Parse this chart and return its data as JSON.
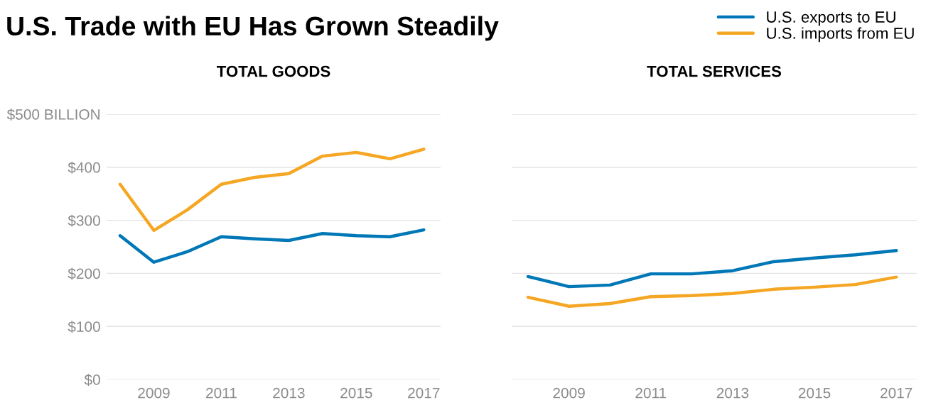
{
  "chart_data": [
    {
      "type": "line",
      "title": "U.S. Trade with EU Has Grown Steadily",
      "subtitle": "TOTAL GOODS",
      "x": [
        2008,
        2009,
        2010,
        2011,
        2012,
        2013,
        2014,
        2015,
        2016,
        2017
      ],
      "series": [
        {
          "color": "#0077b6",
          "values": [
            271,
            221,
            241,
            269,
            265,
            262,
            275,
            271,
            269,
            282
          ]
        },
        {
          "color": "#f5a623",
          "values": [
            368,
            281,
            320,
            368,
            381,
            388,
            421,
            428,
            416,
            434
          ]
        }
      ],
      "xlim": [
        2007.6,
        2017.5
      ],
      "xticks": [
        2009,
        2011,
        2013,
        2015,
        2017
      ],
      "ylim": [
        0,
        500
      ],
      "yticks": [
        {
          "value": 0,
          "label": "$0"
        },
        {
          "value": 100,
          "label": "$100"
        },
        {
          "value": 200,
          "label": "$200"
        },
        {
          "value": 300,
          "label": "$300"
        },
        {
          "value": 400,
          "label": "$400"
        },
        {
          "value": 500,
          "label": "$500 BILLION"
        }
      ],
      "grid": "y",
      "legend": false
    },
    {
      "type": "line",
      "subtitle": "TOTAL SERVICES",
      "x": [
        2008,
        2009,
        2010,
        2011,
        2012,
        2013,
        2014,
        2015,
        2016,
        2017
      ],
      "series": [
        {
          "name": "U.S. exports to EU",
          "color": "#0077b6",
          "values": [
            194,
            175,
            178,
            199,
            199,
            205,
            222,
            229,
            235,
            243
          ]
        },
        {
          "name": "U.S. imports from EU",
          "color": "#f5a623",
          "values": [
            155,
            138,
            143,
            156,
            158,
            162,
            170,
            174,
            179,
            193
          ]
        }
      ],
      "xlim": [
        2007.6,
        2017.5
      ],
      "xticks": [
        2009,
        2011,
        2013,
        2015,
        2017
      ],
      "ylim": [
        0,
        500
      ],
      "yticks": [
        0,
        100,
        200,
        300,
        400,
        500
      ],
      "grid": "y",
      "legend": "top right",
      "tick_labels": "x"
    }
  ]
}
